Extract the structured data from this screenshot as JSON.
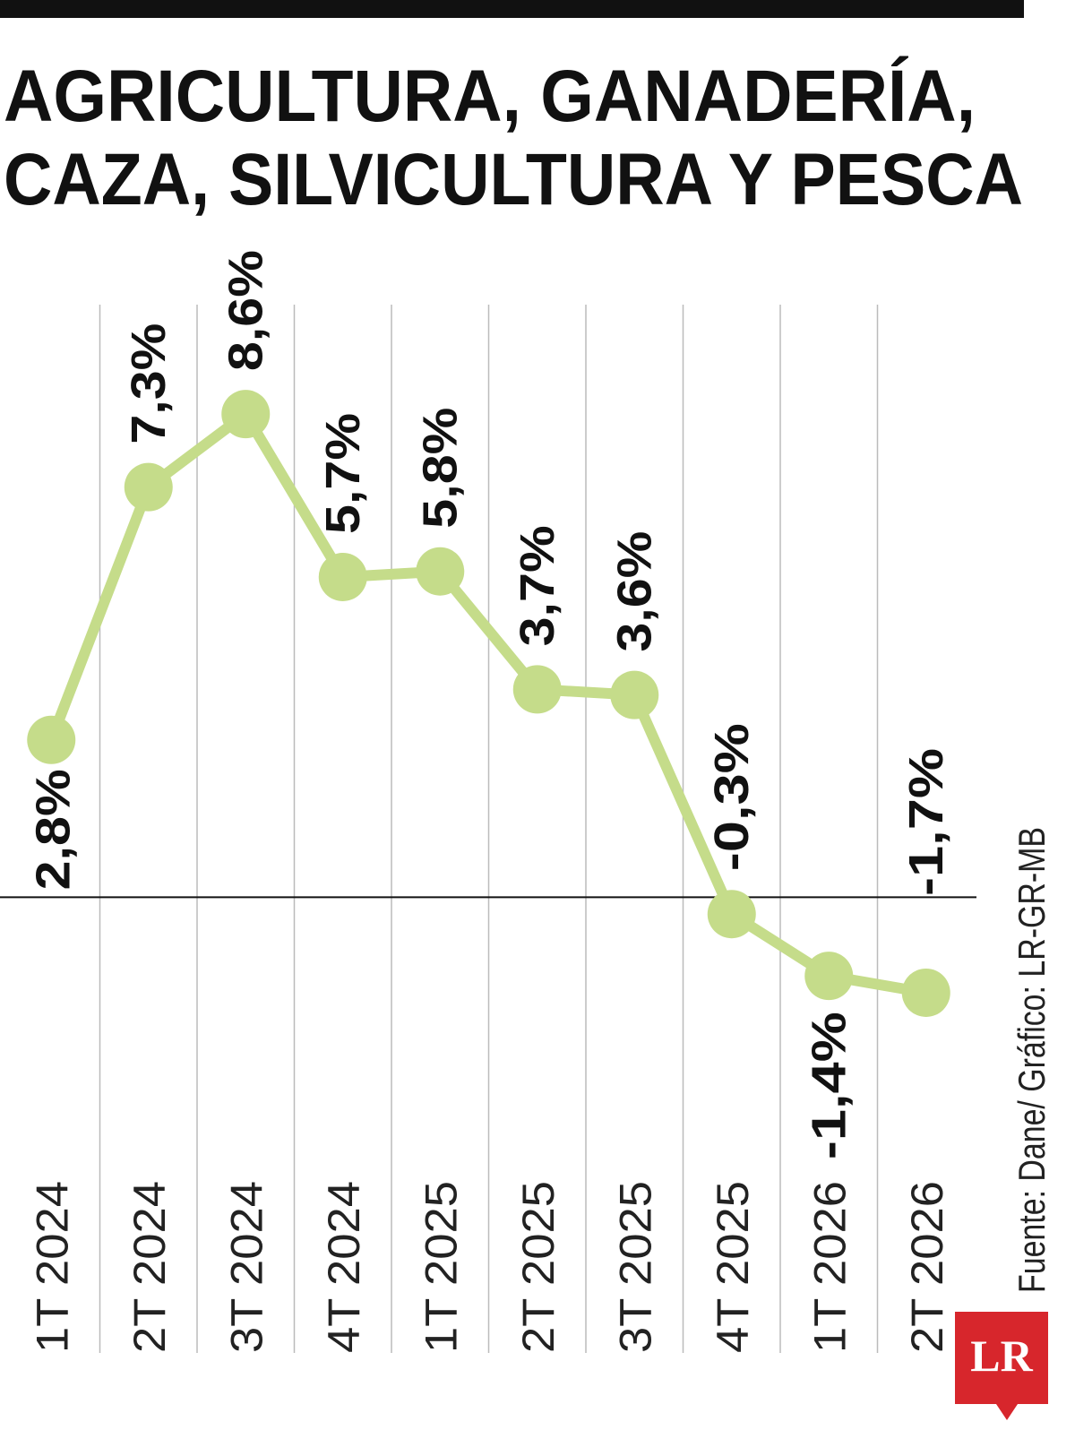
{
  "chart_data": {
    "type": "line",
    "title": [
      "AGRICULTURA, GANADERÍA,",
      "CAZA, SILVICULTURA Y PESCA"
    ],
    "categories": [
      "1T 2024",
      "2T 2024",
      "3T 2024",
      "4T 2024",
      "1T 2025",
      "2T 2025",
      "3T 2025",
      "4T 2025",
      "1T 2026",
      "2T 2026"
    ],
    "values": [
      2.8,
      7.3,
      8.6,
      5.7,
      5.8,
      3.7,
      3.6,
      -0.3,
      -1.4,
      -1.7
    ],
    "value_labels": [
      "2,8%",
      "7,3%",
      "8,6%",
      "5,7%",
      "5,8%",
      "3,7%",
      "3,6%",
      "-0,3%",
      "-1,4%",
      "-1,7%"
    ],
    "color": "#c5dc8a",
    "ylim": [
      -8,
      10.5
    ],
    "source": "Fuente: Dane/ Gráfico: LR-GR-MB",
    "logo": "LR"
  }
}
